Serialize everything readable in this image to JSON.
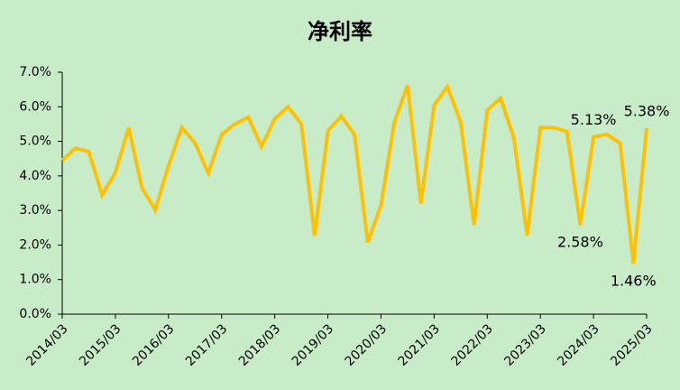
{
  "chart_data": {
    "type": "line",
    "title": "净利率",
    "categories": [
      "2014/03",
      null,
      null,
      null,
      "2015/03",
      null,
      null,
      null,
      "2016/03",
      null,
      null,
      null,
      "2017/03",
      null,
      null,
      null,
      "2018/03",
      null,
      null,
      null,
      "2019/03",
      null,
      null,
      null,
      "2020/03",
      null,
      null,
      null,
      "2021/03",
      null,
      null,
      null,
      "2022/03",
      null,
      null,
      null,
      "2023/03",
      null,
      null,
      null,
      "2024/03",
      null,
      null,
      null,
      "2025/03"
    ],
    "series": [
      {
        "name": "净利率",
        "color": "#ffc000",
        "values": [
          4.45,
          4.8,
          4.7,
          3.45,
          4.1,
          5.4,
          3.65,
          3.02,
          4.3,
          5.4,
          4.95,
          4.08,
          5.2,
          5.5,
          5.7,
          4.85,
          5.65,
          6.0,
          5.5,
          2.28,
          5.3,
          5.73,
          5.2,
          2.08,
          3.15,
          5.55,
          6.62,
          3.2,
          6.05,
          6.58,
          5.55,
          2.58,
          5.9,
          6.25,
          5.1,
          2.28,
          5.4,
          5.4,
          5.28,
          2.58,
          5.13,
          5.2,
          4.95,
          1.46,
          5.38
        ],
        "value_labels": [
          null,
          null,
          null,
          null,
          null,
          null,
          null,
          null,
          null,
          null,
          null,
          null,
          null,
          null,
          null,
          null,
          null,
          null,
          null,
          null,
          null,
          null,
          null,
          null,
          null,
          null,
          null,
          null,
          null,
          null,
          null,
          null,
          null,
          null,
          null,
          null,
          null,
          null,
          null,
          "2.58%",
          "5.13%",
          null,
          null,
          "1.46%",
          "5.38%"
        ]
      }
    ],
    "ylim": [
      0,
      7
    ],
    "yticks": [
      {
        "value": 0,
        "label": "0.0%"
      },
      {
        "value": 1,
        "label": "1.0%"
      },
      {
        "value": 2,
        "label": "2.0%"
      },
      {
        "value": 3,
        "label": "3.0%"
      },
      {
        "value": 4,
        "label": "4.0%"
      },
      {
        "value": 5,
        "label": "5.0%"
      },
      {
        "value": 6,
        "label": "6.0%"
      },
      {
        "value": 7,
        "label": "7.0%"
      }
    ],
    "grid": false
  }
}
